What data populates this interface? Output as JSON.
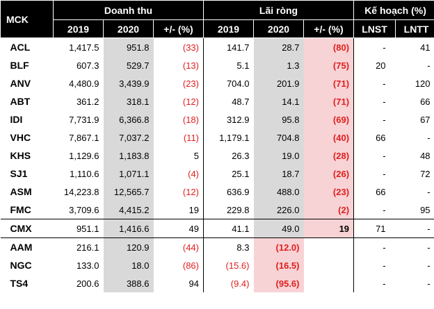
{
  "header": {
    "mck": "MCK",
    "revenue": "Doanh thu",
    "net_profit": "Lãi ròng",
    "plan": "Kế hoạch (%)",
    "y2019": "2019",
    "y2020": "2020",
    "change": "+/- (%)",
    "lnst": "LNST",
    "lntt": "LNTT"
  },
  "rows": [
    {
      "mck": "ACL",
      "rev2019": "1,417.5",
      "rev2020": "951.8",
      "rev_chg": "(33)",
      "np2019": "141.7",
      "np2020": "28.7",
      "np_chg": "(80)",
      "lnst": "-",
      "lntt": "41"
    },
    {
      "mck": "BLF",
      "rev2019": "607.3",
      "rev2020": "529.7",
      "rev_chg": "(13)",
      "np2019": "5.1",
      "np2020": "1.3",
      "np_chg": "(75)",
      "lnst": "20",
      "lntt": "-"
    },
    {
      "mck": "ANV",
      "rev2019": "4,480.9",
      "rev2020": "3,439.9",
      "rev_chg": "(23)",
      "np2019": "704.0",
      "np2020": "201.9",
      "np_chg": "(71)",
      "lnst": "-",
      "lntt": "120"
    },
    {
      "mck": "ABT",
      "rev2019": "361.2",
      "rev2020": "318.1",
      "rev_chg": "(12)",
      "np2019": "48.7",
      "np2020": "14.1",
      "np_chg": "(71)",
      "lnst": "-",
      "lntt": "66"
    },
    {
      "mck": "IDI",
      "rev2019": "7,731.9",
      "rev2020": "6,366.8",
      "rev_chg": "(18)",
      "np2019": "312.9",
      "np2020": "95.8",
      "np_chg": "(69)",
      "lnst": "-",
      "lntt": "67"
    },
    {
      "mck": "VHC",
      "rev2019": "7,867.1",
      "rev2020": "7,037.2",
      "rev_chg": "(11)",
      "np2019": "1,179.1",
      "np2020": "704.8",
      "np_chg": "(40)",
      "lnst": "66",
      "lntt": "-"
    },
    {
      "mck": "KHS",
      "rev2019": "1,129.6",
      "rev2020": "1,183.8",
      "rev_chg": "5",
      "np2019": "26.3",
      "np2020": "19.0",
      "np_chg": "(28)",
      "lnst": "-",
      "lntt": "48"
    },
    {
      "mck": "SJ1",
      "rev2019": "1,110.6",
      "rev2020": "1,071.1",
      "rev_chg": "(4)",
      "np2019": "25.1",
      "np2020": "18.7",
      "np_chg": "(26)",
      "lnst": "-",
      "lntt": "72"
    },
    {
      "mck": "ASM",
      "rev2019": "14,223.8",
      "rev2020": "12,565.7",
      "rev_chg": "(12)",
      "np2019": "636.9",
      "np2020": "488.0",
      "np_chg": "(23)",
      "lnst": "66",
      "lntt": "-"
    },
    {
      "mck": "FMC",
      "rev2019": "3,709.6",
      "rev2020": "4,415.2",
      "rev_chg": "19",
      "np2019": "229.8",
      "np2020": "226.0",
      "np_chg": "(2)",
      "lnst": "-",
      "lntt": "95"
    },
    {
      "mck": "CMX",
      "rev2019": "951.1",
      "rev2020": "1,416.6",
      "rev_chg": "49",
      "np2019": "41.1",
      "np2020": "49.0",
      "np_chg": "19",
      "lnst": "71",
      "lntt": "-"
    },
    {
      "mck": "AAM",
      "rev2019": "216.1",
      "rev2020": "120.9",
      "rev_chg": "(44)",
      "np2019": "8.3",
      "np2020": "(12.0)",
      "np_chg": "",
      "lnst": "-",
      "lntt": "-"
    },
    {
      "mck": "NGC",
      "rev2019": "133.0",
      "rev2020": "18.0",
      "rev_chg": "(86)",
      "np2019": "(15.6)",
      "np2020": "(16.5)",
      "np_chg": "",
      "lnst": "-",
      "lntt": "-"
    },
    {
      "mck": "TS4",
      "rev2019": "200.6",
      "rev2020": "388.6",
      "rev_chg": "94",
      "np2019": "(9.4)",
      "np2020": "(95.6)",
      "np_chg": "",
      "lnst": "-",
      "lntt": "-"
    }
  ],
  "colors": {
    "header_bg": "#000000",
    "gray_col": "#d9d9d9",
    "pink_col": "#f8d3d5",
    "negative": "#e01e1e"
  }
}
